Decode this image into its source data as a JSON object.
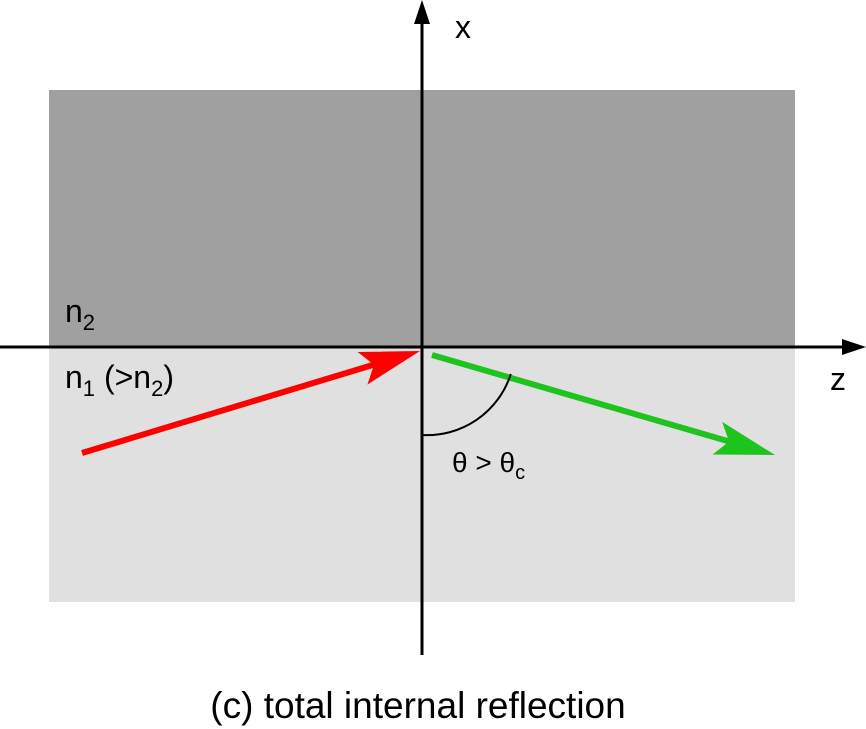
{
  "axes": {
    "vertical_label": "x",
    "horizontal_label": "z"
  },
  "medium_2_label": [
    "n",
    "2"
  ],
  "medium_1_label": [
    "n",
    "1",
    " (>n",
    "2",
    ")"
  ],
  "angle_label": [
    "θ > θ",
    "c"
  ],
  "caption": "(c) total internal reflection"
}
